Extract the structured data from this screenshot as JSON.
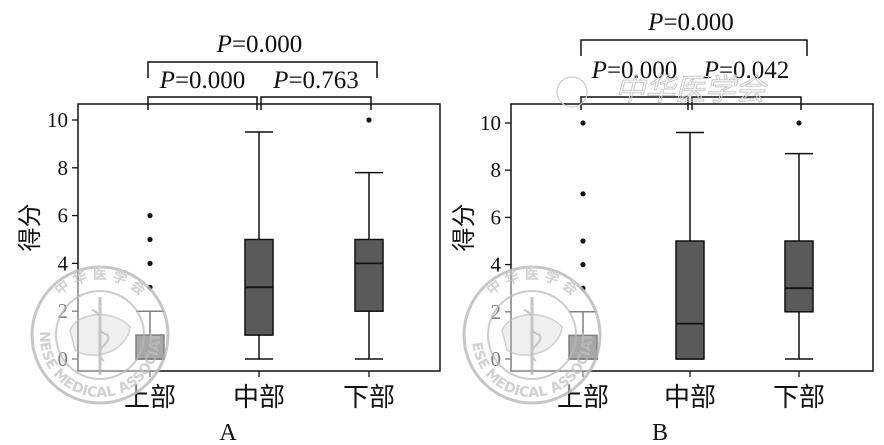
{
  "chart_data": [
    {
      "type": "box",
      "panel_label": "A",
      "ylabel": "得分",
      "ylim": [
        -0.5,
        10.5
      ],
      "yticks": [
        0,
        2,
        4,
        6,
        8,
        10
      ],
      "categories": [
        "上部",
        "中部",
        "下部"
      ],
      "box_color": "#5a5a5a",
      "boxes": [
        {
          "whisker_low": 0,
          "q1": 0,
          "median": 0,
          "q3": 1,
          "whisker_high": 2,
          "outliers": [
            3,
            4,
            5,
            6
          ]
        },
        {
          "whisker_low": 0,
          "q1": 1,
          "median": 3,
          "q3": 5,
          "whisker_high": 9.5,
          "outliers": []
        },
        {
          "whisker_low": 0,
          "q1": 2,
          "median": 4,
          "q3": 5,
          "whisker_high": 7.8,
          "outliers": [
            10
          ]
        }
      ],
      "comparisons": [
        {
          "label": "P=0.000",
          "from": 0,
          "to": 1
        },
        {
          "label": "P=0.763",
          "from": 1,
          "to": 2
        },
        {
          "label": "P=0.000",
          "from": 0,
          "to": 2
        }
      ]
    },
    {
      "type": "box",
      "panel_label": "B",
      "ylabel": "得分",
      "ylim": [
        -0.5,
        10.5
      ],
      "yticks": [
        0,
        2,
        4,
        6,
        8,
        10
      ],
      "categories": [
        "上部",
        "中部",
        "下部"
      ],
      "box_color": "#5a5a5a",
      "boxes": [
        {
          "whisker_low": 0,
          "q1": 0,
          "median": 0,
          "q3": 1,
          "whisker_high": 2,
          "outliers": [
            3,
            4,
            5,
            7,
            10
          ]
        },
        {
          "whisker_low": 0,
          "q1": 0,
          "median": 1.5,
          "q3": 5,
          "whisker_high": 9.6,
          "outliers": []
        },
        {
          "whisker_low": 0,
          "q1": 2,
          "median": 3,
          "q3": 5,
          "whisker_high": 8.7,
          "outliers": [
            10
          ]
        }
      ],
      "comparisons": [
        {
          "label": "P=0.000",
          "from": 0,
          "to": 1
        },
        {
          "label": "P=0.042",
          "from": 1,
          "to": 2
        },
        {
          "label": "P=0.000",
          "from": 0,
          "to": 2
        }
      ]
    }
  ],
  "watermarks": {
    "seal_top": "中 华 医 学 会",
    "seal_bottom": "CHINESE MEDICAL ASSOCIATION",
    "faint_text": "中华医学会"
  }
}
